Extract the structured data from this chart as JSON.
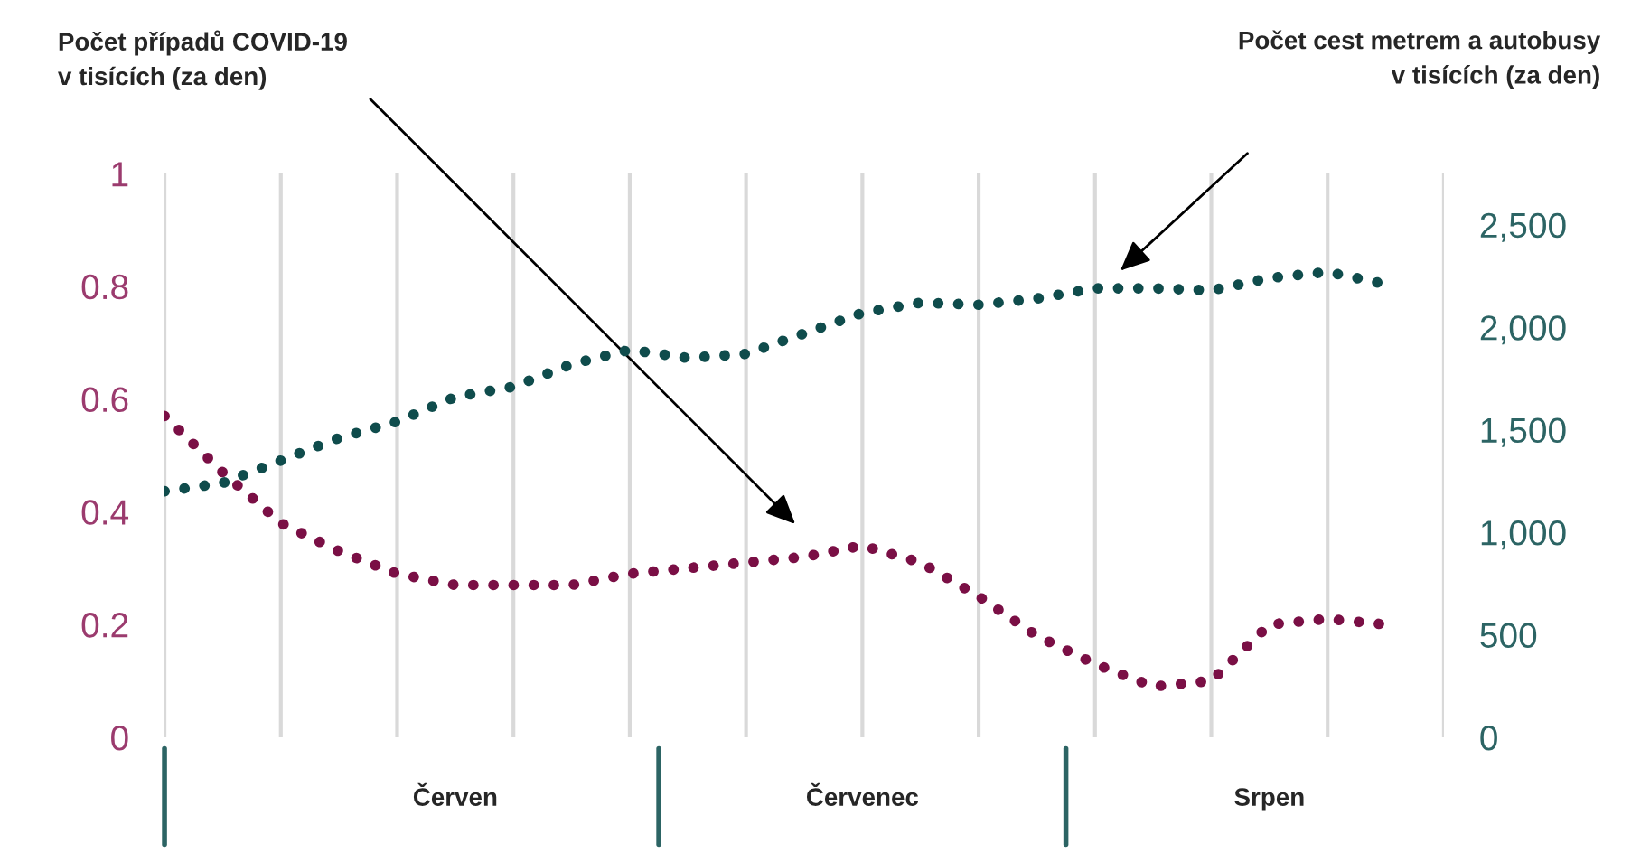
{
  "chart_data": {
    "type": "line",
    "categories": [
      null,
      null,
      null,
      null,
      null,
      "Červen",
      null,
      null,
      null,
      null,
      null,
      null,
      "Červenec",
      null,
      null,
      null,
      null,
      null,
      null,
      "Srpen",
      null,
      null,
      null
    ],
    "series": [
      {
        "color": "#7a0f45",
        "axis": "y",
        "values": [
          0.57,
          0.47,
          0.38,
          0.33,
          0.29,
          0.27,
          0.27,
          0.27,
          0.29,
          0.3,
          0.31,
          0.32,
          0.34,
          0.31,
          0.25,
          0.18,
          0.13,
          0.09,
          0.1,
          0.2,
          0.21,
          0.2,
          null
        ]
      },
      {
        "color": "#0f4c4c",
        "axis": "y2",
        "values": [
          1200,
          1240,
          1350,
          1460,
          1540,
          1660,
          1710,
          1820,
          1890,
          1850,
          1870,
          1970,
          2070,
          2120,
          2110,
          2140,
          2190,
          2190,
          2180,
          2240,
          2270,
          2210,
          null
        ]
      }
    ],
    "ylim": [
      0,
      1
    ],
    "yticks": [
      0,
      0.2,
      0.4,
      0.6,
      0.8,
      1
    ],
    "y2lim": [
      0,
      2750
    ],
    "y2ticks": [
      0,
      500,
      {
        "value": 1000,
        "label": "1,000"
      },
      {
        "value": 1500,
        "label": "1,500"
      },
      {
        "value": 2000,
        "label": "2,000"
      },
      {
        "value": 2500,
        "label": "2,500"
      }
    ],
    "grid": "x",
    "line_style": "dotted",
    "annotations": [
      "Počet případů COVID-19\nv tisících (za den)",
      "Počet cest metrem a autobusy\nv tisících (za den)"
    ]
  }
}
